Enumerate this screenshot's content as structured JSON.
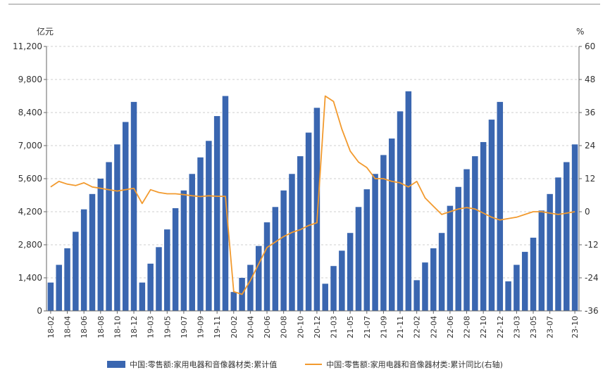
{
  "chart_data": {
    "type": "bar",
    "y_left_unit": "亿元",
    "y_right_unit": "%",
    "y_left_ticks": [
      "11,200",
      "9,800",
      "8,400",
      "7,000",
      "5,600",
      "4,200",
      "2,800",
      "1,400",
      "0"
    ],
    "y_right_ticks": [
      "60",
      "48",
      "36",
      "24",
      "12",
      "0",
      "-12",
      "-24",
      "-36"
    ],
    "ylim_left": [
      0,
      11200
    ],
    "ylim_right": [
      -36,
      60
    ],
    "grid": true,
    "legend_position": "bottom",
    "categories": [
      "18-02",
      "18-03",
      "18-04",
      "18-05",
      "18-06",
      "18-07",
      "18-08",
      "18-09",
      "18-10",
      "18-11",
      "18-12",
      "19-02",
      "19-03",
      "19-04",
      "19-05",
      "19-06",
      "19-07",
      "19-08",
      "19-09",
      "19-10",
      "19-11",
      "19-12",
      "20-02",
      "20-03",
      "20-04",
      "20-05",
      "20-06",
      "20-07",
      "20-08",
      "20-09",
      "20-10",
      "20-11",
      "20-12",
      "21-02",
      "21-03",
      "21-04",
      "21-05",
      "21-06",
      "21-07",
      "21-08",
      "21-09",
      "21-10",
      "21-11",
      "21-12",
      "22-02",
      "22-03",
      "22-04",
      "22-05",
      "22-06",
      "22-07",
      "22-08",
      "22-09",
      "22-10",
      "22-11",
      "22-12",
      "23-02",
      "23-03",
      "23-04",
      "23-05",
      "23-06",
      "23-07",
      "23-08",
      "23-09",
      "23-10"
    ],
    "tick_labels": [
      "18-02",
      "18-04",
      "18-06",
      "18-08",
      "18-10",
      "18-12",
      "19-03",
      "19-05",
      "19-07",
      "19-09",
      "19-11",
      "20-02",
      "20-04",
      "20-06",
      "20-08",
      "20-10",
      "20-12",
      "21-03",
      "21-05",
      "21-07",
      "21-09",
      "21-11",
      "22-02",
      "22-04",
      "22-06",
      "22-08",
      "22-10",
      "22-12",
      "23-03",
      "23-05",
      "23-07",
      "23-10"
    ],
    "series": [
      {
        "name": "中国:零售额:家用电器和音像器材类:累计值",
        "type": "bar",
        "axis": "left",
        "color": "#3A66B0",
        "values": [
          1200,
          1950,
          2650,
          3350,
          4300,
          4950,
          5600,
          6300,
          7050,
          8000,
          8850,
          1200,
          2000,
          2700,
          3450,
          4350,
          5100,
          5800,
          6500,
          7200,
          8250,
          9100,
          800,
          1400,
          1950,
          2750,
          3750,
          4400,
          5100,
          5800,
          6550,
          7550,
          8600,
          1150,
          1900,
          2550,
          3300,
          4400,
          5150,
          5800,
          6600,
          7300,
          8450,
          9300,
          1300,
          2050,
          2650,
          3300,
          4450,
          5250,
          6000,
          6550,
          7150,
          8100,
          8850,
          1250,
          1950,
          2500,
          3100,
          4250,
          4950,
          5650,
          6300,
          7050
        ]
      },
      {
        "name": "中国:零售额:家用电器和音像器材类:累计同比(右轴)",
        "type": "line",
        "axis": "right",
        "color": "#F29A2E",
        "values": [
          9,
          11,
          10,
          9.5,
          10.5,
          9,
          8.5,
          8,
          7.5,
          8,
          8.5,
          3,
          8,
          7,
          6.5,
          6.5,
          6.2,
          5.8,
          5.5,
          5.8,
          5.6,
          5.6,
          -29,
          -30,
          -25,
          -19,
          -13,
          -11,
          -9,
          -7.5,
          -6.5,
          -5,
          -4,
          42,
          40,
          30,
          22,
          18,
          16,
          12,
          12,
          11,
          10.5,
          9,
          11,
          5,
          2,
          -1,
          0,
          1,
          1.5,
          1,
          -0.5,
          -2,
          -3,
          -2.5,
          -2,
          -1,
          0,
          0,
          -0.5,
          -1,
          -0.5,
          0
        ]
      }
    ]
  }
}
